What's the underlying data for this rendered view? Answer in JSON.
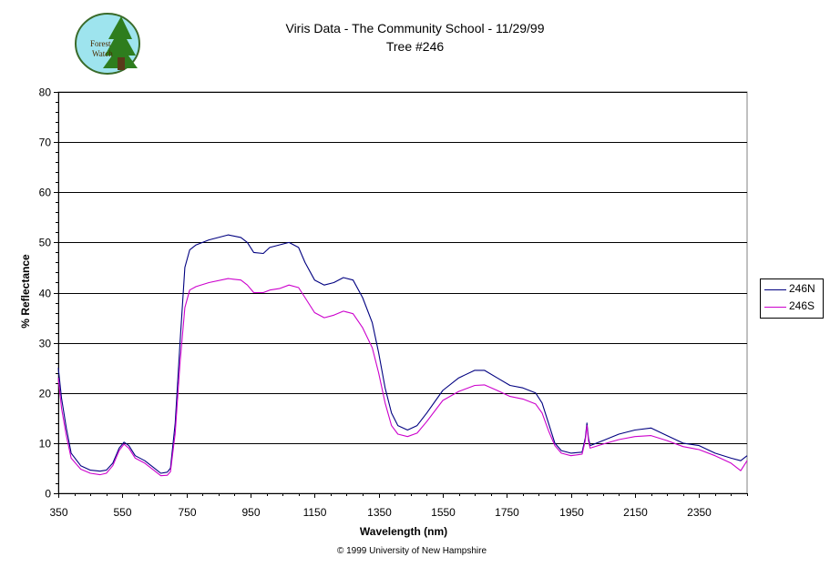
{
  "logo": {
    "text_line1": "Forest",
    "text_line2": "Watch"
  },
  "chart_data": {
    "type": "line",
    "title": "Viris Data - The Community School - 11/29/99",
    "subtitle": "Tree #246",
    "xlabel": "Wavelength (nm)",
    "ylabel": "% Reflectance",
    "xlim": [
      350,
      2500
    ],
    "ylim": [
      0,
      80
    ],
    "xticks": [
      "350",
      "550",
      "750",
      "950",
      "1150",
      "1350",
      "1550",
      "1750",
      "1950",
      "2150",
      "2350"
    ],
    "yticks": [
      "0",
      "10",
      "20",
      "30",
      "40",
      "50",
      "60",
      "70",
      "80"
    ],
    "grid": "horizontal major lines",
    "legend_position": "right",
    "series": [
      {
        "name": "246N",
        "color": "#000080",
        "points": [
          [
            350,
            25
          ],
          [
            360,
            19
          ],
          [
            375,
            13
          ],
          [
            390,
            8
          ],
          [
            420,
            5.5
          ],
          [
            450,
            4.6
          ],
          [
            480,
            4.4
          ],
          [
            500,
            4.6
          ],
          [
            520,
            6
          ],
          [
            540,
            9
          ],
          [
            555,
            10.2
          ],
          [
            570,
            9.5
          ],
          [
            590,
            7.5
          ],
          [
            620,
            6.5
          ],
          [
            650,
            5
          ],
          [
            670,
            4
          ],
          [
            690,
            4.2
          ],
          [
            700,
            5
          ],
          [
            715,
            14
          ],
          [
            730,
            30
          ],
          [
            745,
            45
          ],
          [
            760,
            48.5
          ],
          [
            780,
            49.5
          ],
          [
            820,
            50.5
          ],
          [
            880,
            51.5
          ],
          [
            920,
            51
          ],
          [
            940,
            50
          ],
          [
            960,
            48
          ],
          [
            990,
            47.8
          ],
          [
            1010,
            49
          ],
          [
            1040,
            49.5
          ],
          [
            1070,
            50
          ],
          [
            1100,
            49
          ],
          [
            1120,
            46
          ],
          [
            1150,
            42.5
          ],
          [
            1180,
            41.5
          ],
          [
            1210,
            42
          ],
          [
            1240,
            43
          ],
          [
            1270,
            42.5
          ],
          [
            1300,
            39
          ],
          [
            1330,
            34
          ],
          [
            1350,
            28
          ],
          [
            1370,
            21
          ],
          [
            1390,
            16
          ],
          [
            1410,
            13.5
          ],
          [
            1440,
            12.6
          ],
          [
            1470,
            13.5
          ],
          [
            1500,
            16
          ],
          [
            1550,
            20.5
          ],
          [
            1600,
            23
          ],
          [
            1650,
            24.5
          ],
          [
            1680,
            24.5
          ],
          [
            1720,
            23
          ],
          [
            1760,
            21.5
          ],
          [
            1800,
            21
          ],
          [
            1840,
            20
          ],
          [
            1860,
            18
          ],
          [
            1880,
            14
          ],
          [
            1900,
            10
          ],
          [
            1920,
            8.5
          ],
          [
            1950,
            8
          ],
          [
            1985,
            8.2
          ],
          [
            1995,
            11
          ],
          [
            2000,
            14
          ],
          [
            2005,
            11
          ],
          [
            2010,
            9.5
          ],
          [
            2050,
            10.5
          ],
          [
            2100,
            11.8
          ],
          [
            2150,
            12.6
          ],
          [
            2200,
            13
          ],
          [
            2250,
            11.5
          ],
          [
            2300,
            10
          ],
          [
            2350,
            9.5
          ],
          [
            2400,
            8
          ],
          [
            2450,
            7
          ],
          [
            2480,
            6.5
          ],
          [
            2500,
            7.5
          ]
        ]
      },
      {
        "name": "246S",
        "color": "#cc00cc",
        "points": [
          [
            350,
            23
          ],
          [
            360,
            17
          ],
          [
            375,
            11.5
          ],
          [
            390,
            7
          ],
          [
            420,
            4.8
          ],
          [
            450,
            4
          ],
          [
            480,
            3.7
          ],
          [
            500,
            4
          ],
          [
            520,
            5.5
          ],
          [
            540,
            8.5
          ],
          [
            555,
            9.8
          ],
          [
            570,
            9
          ],
          [
            590,
            7
          ],
          [
            620,
            6
          ],
          [
            650,
            4.5
          ],
          [
            670,
            3.5
          ],
          [
            690,
            3.6
          ],
          [
            700,
            4.3
          ],
          [
            715,
            12
          ],
          [
            730,
            26
          ],
          [
            745,
            37
          ],
          [
            760,
            40.5
          ],
          [
            780,
            41.2
          ],
          [
            820,
            42
          ],
          [
            880,
            42.8
          ],
          [
            920,
            42.5
          ],
          [
            940,
            41.5
          ],
          [
            960,
            40
          ],
          [
            990,
            40
          ],
          [
            1010,
            40.5
          ],
          [
            1040,
            40.8
          ],
          [
            1070,
            41.5
          ],
          [
            1100,
            41
          ],
          [
            1120,
            39
          ],
          [
            1150,
            36
          ],
          [
            1180,
            35
          ],
          [
            1210,
            35.5
          ],
          [
            1240,
            36.3
          ],
          [
            1270,
            35.8
          ],
          [
            1300,
            33
          ],
          [
            1330,
            29
          ],
          [
            1350,
            24
          ],
          [
            1370,
            18
          ],
          [
            1390,
            13.5
          ],
          [
            1410,
            11.8
          ],
          [
            1440,
            11.3
          ],
          [
            1470,
            12
          ],
          [
            1500,
            14.3
          ],
          [
            1550,
            18.5
          ],
          [
            1600,
            20.3
          ],
          [
            1650,
            21.5
          ],
          [
            1680,
            21.6
          ],
          [
            1720,
            20.5
          ],
          [
            1760,
            19.3
          ],
          [
            1800,
            18.8
          ],
          [
            1840,
            17.8
          ],
          [
            1860,
            16
          ],
          [
            1880,
            12.5
          ],
          [
            1900,
            9.5
          ],
          [
            1920,
            8
          ],
          [
            1950,
            7.5
          ],
          [
            1985,
            7.8
          ],
          [
            1995,
            10.5
          ],
          [
            2000,
            13.5
          ],
          [
            2005,
            10.5
          ],
          [
            2010,
            9
          ],
          [
            2050,
            9.8
          ],
          [
            2100,
            10.7
          ],
          [
            2150,
            11.3
          ],
          [
            2200,
            11.5
          ],
          [
            2250,
            10.5
          ],
          [
            2300,
            9.3
          ],
          [
            2350,
            8.7
          ],
          [
            2400,
            7.5
          ],
          [
            2450,
            6
          ],
          [
            2480,
            4.5
          ],
          [
            2500,
            6.5
          ]
        ]
      }
    ]
  },
  "copyright": "© 1999 University of New Hampshire"
}
